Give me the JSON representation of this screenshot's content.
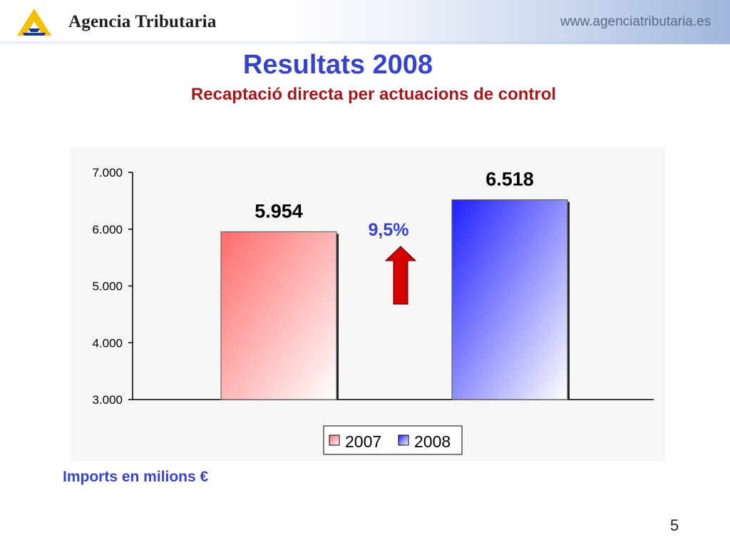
{
  "header": {
    "brand_name": "Agencia Tributaria",
    "site_url": "www.agenciatributaria.es",
    "logo_color": "#f2c200",
    "logo_accent": "#1a3a8c"
  },
  "slide": {
    "title": "Resultats 2008",
    "subtitle": "Recaptació directa per actuacions de control",
    "units_note": "Imports en milions €",
    "page_number": "5"
  },
  "chart_data": {
    "type": "bar",
    "title": "",
    "xlabel": "",
    "ylabel": "",
    "ylim": [
      3000,
      7000
    ],
    "yticks": [
      3000,
      4000,
      5000,
      6000,
      7000
    ],
    "ytick_labels": [
      "3.000",
      "4.000",
      "5.000",
      "6.000",
      "7.000"
    ],
    "series": [
      {
        "name": "2007",
        "values": [
          5954
        ],
        "value_label": "5.954",
        "color": "#ff6b6b"
      },
      {
        "name": "2008",
        "values": [
          6518
        ],
        "value_label": "6.518",
        "color": "#2424ff"
      }
    ],
    "annotation": {
      "text": "9,5%",
      "arrow": "up-arrow",
      "color": "#d40000",
      "text_color": "#3844c8"
    },
    "legend_position": "bottom-center",
    "grid": false
  }
}
